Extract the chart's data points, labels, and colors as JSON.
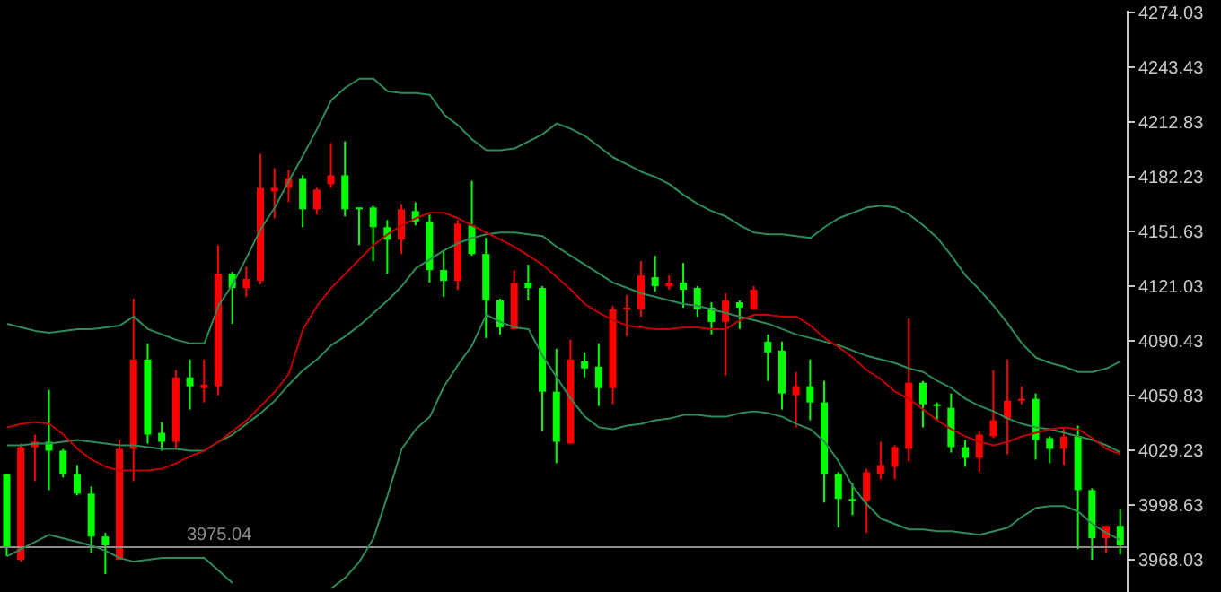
{
  "chart_data": {
    "type": "candlestick",
    "categories": [
      null,
      null,
      null,
      null,
      null,
      null,
      null,
      null,
      null,
      null,
      null,
      null,
      null,
      null,
      null,
      null,
      null,
      null,
      null,
      null,
      null,
      null,
      null,
      null,
      null,
      null,
      null,
      null,
      null,
      null,
      null,
      null,
      null,
      null,
      null,
      null,
      null,
      null,
      null,
      null,
      null,
      null,
      null,
      null,
      null,
      null,
      null,
      null,
      null,
      null,
      null,
      null,
      null,
      null,
      null,
      null,
      null,
      null,
      null,
      null,
      null,
      null,
      null,
      null,
      null,
      null,
      null,
      null,
      null,
      null,
      null,
      null,
      null,
      null,
      null,
      null,
      null,
      null,
      null,
      null
    ],
    "ohlc": [
      [
        4016,
        4016,
        3970,
        3975
      ],
      [
        3968,
        4033,
        3967,
        4031
      ],
      [
        4031,
        4038,
        4012,
        4034
      ],
      [
        4034,
        4063,
        4007,
        4029
      ],
      [
        4029,
        4030,
        4014,
        4016
      ],
      [
        4016,
        4021,
        4004,
        4005
      ],
      [
        4005,
        4009,
        3972,
        3981
      ],
      [
        3981,
        3983,
        3960,
        3976
      ],
      [
        3968,
        4035,
        3968,
        4030
      ],
      [
        4030,
        4114,
        4012,
        4080
      ],
      [
        4080,
        4089,
        4033,
        4038
      ],
      [
        4039,
        4045,
        4029,
        4034
      ],
      [
        4034,
        4074,
        4030,
        4070
      ],
      [
        4070,
        4080,
        4052,
        4065
      ],
      [
        4064,
        4080,
        4056,
        4066
      ],
      [
        4065,
        4144,
        4060,
        4128
      ],
      [
        4128,
        4129,
        4100,
        4120
      ],
      [
        4120,
        4132,
        4115,
        4125
      ],
      [
        4124,
        4195,
        4122,
        4176
      ],
      [
        4174,
        4187,
        4159,
        4176
      ],
      [
        4176,
        4186,
        4168,
        4181
      ],
      [
        4181,
        4183,
        4154,
        4164
      ],
      [
        4164,
        4176,
        4161,
        4175
      ],
      [
        4178,
        4201,
        4176,
        4183
      ],
      [
        4183,
        4202,
        4160,
        4164
      ],
      [
        4165,
        4165,
        4144,
        4164
      ],
      [
        4165,
        4166,
        4135,
        4154
      ],
      [
        4154,
        4158,
        4128,
        4147
      ],
      [
        4147,
        4167,
        4139,
        4164
      ],
      [
        4163,
        4168,
        4155,
        4157
      ],
      [
        4157,
        4161,
        4123,
        4130
      ],
      [
        4130,
        4141,
        4115,
        4124
      ],
      [
        4124,
        4158,
        4119,
        4156
      ],
      [
        4155,
        4180,
        4138,
        4139
      ],
      [
        4139,
        4148,
        4092,
        4113
      ],
      [
        4113,
        4114,
        4094,
        4098
      ],
      [
        4097,
        4130,
        4097,
        4123
      ],
      [
        4123,
        4133,
        4113,
        4120
      ],
      [
        4120,
        4121,
        4040,
        4062
      ],
      [
        4062,
        4086,
        4022,
        4034
      ],
      [
        4033,
        4091,
        4033,
        4080
      ],
      [
        4079,
        4084,
        4070,
        4075
      ],
      [
        4076,
        4089,
        4054,
        4064
      ],
      [
        4064,
        4110,
        4055,
        4108
      ],
      [
        4108,
        4116,
        4093,
        4109
      ],
      [
        4108,
        4135,
        4104,
        4127
      ],
      [
        4126,
        4138,
        4118,
        4121
      ],
      [
        4121,
        4127,
        4119,
        4123
      ],
      [
        4123,
        4134,
        4109,
        4119
      ],
      [
        4120,
        4121,
        4104,
        4108
      ],
      [
        4109,
        4112,
        4094,
        4101
      ],
      [
        4101,
        4117,
        4071,
        4113
      ],
      [
        4112,
        4113,
        4097,
        4109
      ],
      [
        4108,
        4121,
        4108,
        4119
      ],
      [
        4090,
        4094,
        4068,
        4084
      ],
      [
        4085,
        4090,
        4052,
        4061
      ],
      [
        4060,
        4073,
        4042,
        4065
      ],
      [
        4065,
        4080,
        4046,
        4056
      ],
      [
        4056,
        4068,
        4000,
        4016
      ],
      [
        4016,
        4017,
        3986,
        4002
      ],
      [
        4002,
        4011,
        3993,
        4001
      ],
      [
        4001,
        4019,
        3983,
        4017
      ],
      [
        4016,
        4034,
        4013,
        4021
      ],
      [
        4020,
        4032,
        4013,
        4031
      ],
      [
        4030,
        4103,
        4023,
        4067
      ],
      [
        4067,
        4068,
        4042,
        4055
      ],
      [
        4055,
        4056,
        4046,
        4054
      ],
      [
        4053,
        4061,
        4028,
        4031
      ],
      [
        4031,
        4035,
        4020,
        4025
      ],
      [
        4025,
        4040,
        4017,
        4038
      ],
      [
        4037,
        4074,
        4036,
        4046
      ],
      [
        4047,
        4080,
        4027,
        4057
      ],
      [
        4057,
        4065,
        4055,
        4058
      ],
      [
        4058,
        4061,
        4024,
        4035
      ],
      [
        4036,
        4037,
        4022,
        4030
      ],
      [
        4030,
        4042,
        4021,
        4037
      ],
      [
        4037,
        4043,
        3974,
        4007
      ],
      [
        4007,
        4008,
        3968,
        3980
      ],
      [
        3980,
        3987,
        3972,
        3987
      ],
      [
        3987,
        3996,
        3971,
        3976
      ]
    ],
    "colors": [
      "#00ff00",
      "#ff0000",
      "#ff0000",
      "#00ff00",
      "#00ff00",
      "#00ff00",
      "#00ff00",
      "#00ff00",
      "#ff0000",
      "#ff0000",
      "#00ff00",
      "#00ff00",
      "#ff0000",
      "#00ff00",
      "#ff0000",
      "#ff0000",
      "#00ff00",
      "#ff0000",
      "#ff0000",
      "#ff0000",
      "#ff0000",
      "#00ff00",
      "#ff0000",
      "#ff0000",
      "#00ff00",
      "#00ff00",
      "#00ff00",
      "#00ff00",
      "#ff0000",
      "#00ff00",
      "#00ff00",
      "#00ff00",
      "#ff0000",
      "#00ff00",
      "#00ff00",
      "#00ff00",
      "#ff0000",
      "#00ff00",
      "#00ff00",
      "#00ff00",
      "#ff0000",
      "#00ff00",
      "#00ff00",
      "#ff0000",
      "#ff0000",
      "#ff0000",
      "#00ff00",
      "#ff0000",
      "#00ff00",
      "#00ff00",
      "#00ff00",
      "#ff0000",
      "#00ff00",
      "#ff0000",
      "#00ff00",
      "#00ff00",
      "#ff0000",
      "#00ff00",
      "#00ff00",
      "#00ff00",
      "#00ff00",
      "#ff0000",
      "#ff0000",
      "#ff0000",
      "#ff0000",
      "#00ff00",
      "#00ff00",
      "#00ff00",
      "#00ff00",
      "#ff0000",
      "#ff0000",
      "#ff0000",
      "#ff0000",
      "#00ff00",
      "#00ff00",
      "#ff0000",
      "#00ff00",
      "#00ff00",
      "#ff0000",
      "#00ff00"
    ],
    "series": [
      {
        "type": "line",
        "color": "#2e8b57",
        "values": [
          4100,
          4098,
          4096,
          4095,
          4096,
          4097,
          4097,
          4098,
          4099,
          4104,
          4097,
          4094,
          4091,
          4089,
          4089,
          4110,
          4122,
          4137,
          4153,
          4165,
          4180,
          4194,
          4209,
          4225,
          4232,
          4237,
          4237,
          4230,
          4229,
          4229,
          4228,
          4217,
          4211,
          4203,
          4197,
          4197,
          4198,
          4202,
          4206,
          4212,
          4209,
          4205,
          4199,
          4193,
          4189,
          4185,
          4182,
          4178,
          4172,
          4167,
          4163,
          4160,
          4155,
          4151,
          4150,
          4150,
          4149,
          4148,
          4154,
          4159,
          4162,
          4165,
          4166,
          4165,
          4161,
          4155,
          4148,
          4138,
          4127,
          4119,
          4110,
          4100,
          4089,
          4081,
          4078,
          4076,
          4073,
          4073,
          4075,
          4079
        ]
      },
      {
        "type": "line",
        "color": "#2e8b57",
        "values": [
          4032,
          4032,
          4033,
          4033,
          4034,
          4035,
          4034,
          4033,
          4032,
          4032,
          4031,
          4030,
          4030,
          4029,
          4029,
          4034,
          4038,
          4044,
          4050,
          4057,
          4066,
          4074,
          4080,
          4088,
          4093,
          4099,
          4106,
          4113,
          4121,
          4131,
          4136,
          4141,
          4145,
          4148,
          4150,
          4151,
          4151,
          4150,
          4149,
          4143,
          4138,
          4133,
          4128,
          4123,
          4120,
          4117,
          4115,
          4113,
          4111,
          4110,
          4108,
          4106,
          4104,
          4102,
          4100,
          4097,
          4094,
          4092,
          4090,
          4088,
          4085,
          4082,
          4080,
          4078,
          4075,
          4073,
          4068,
          4064,
          4058,
          4054,
          4051,
          4047,
          4044,
          4042,
          4041,
          4039,
          4037,
          4035,
          4032,
          4028
        ]
      },
      {
        "type": "line",
        "color": "#2e8b57",
        "values": [
          3970,
          3974,
          3978,
          3982,
          3980,
          3978,
          3976,
          3973,
          3969,
          3967,
          3968,
          3969,
          3969,
          3969,
          3969,
          3962,
          3955,
          null,
          null,
          null,
          null,
          null,
          null,
          3952,
          3958,
          3967,
          3980,
          4004,
          4030,
          4041,
          4048,
          4065,
          4077,
          4088,
          4105,
          4101,
          4098,
          4097,
          4082,
          4070,
          4058,
          4048,
          4042,
          4041,
          4043,
          4044,
          4046,
          4047,
          4049,
          4049,
          4048,
          4048,
          4050,
          4051,
          4050,
          4048,
          4044,
          4041,
          4034,
          4023,
          4009,
          3999,
          3991,
          3988,
          3985,
          3985,
          3984,
          3984,
          3983,
          3982,
          3984,
          3986,
          3992,
          3997,
          3998,
          3998,
          3995,
          3988,
          3983,
          3979
        ]
      },
      {
        "type": "line",
        "color": "#c00000",
        "values": [
          4042,
          4044,
          4045,
          4044,
          4038,
          4030,
          4024,
          4020,
          4018,
          4018,
          4018,
          4019,
          4022,
          4026,
          4029,
          4034,
          4040,
          4046,
          4054,
          4062,
          4072,
          4097,
          4110,
          4120,
          4128,
          4136,
          4144,
          4150,
          4155,
          4159,
          4162,
          4162,
          4159,
          4155,
          4151,
          4147,
          4143,
          4138,
          4133,
          4126,
          4119,
          4111,
          4106,
          4102,
          4099,
          4098,
          4097,
          4097,
          4098,
          4098,
          4097,
          4097,
          4102,
          4105,
          4105,
          4104,
          4104,
          4099,
          4092,
          4087,
          4081,
          4074,
          4069,
          4062,
          4058,
          4052,
          4046,
          4041,
          4037,
          4034,
          4032,
          4034,
          4037,
          4039,
          4041,
          4042,
          4041,
          4036,
          4030,
          4027
        ]
      }
    ],
    "ylim": [
      3950,
      4275
    ],
    "yticks": [
      3968.03,
      3998.63,
      4029.23,
      4059.83,
      4090.43,
      4121.03,
      4151.63,
      4182.23,
      4212.83,
      4243.43,
      4274.03
    ],
    "ref_lines": [
      {
        "axis": "y",
        "value": 3975.04,
        "label": "3975.04",
        "color": "#8c8c8c"
      }
    ],
    "tick_labels": "y"
  }
}
